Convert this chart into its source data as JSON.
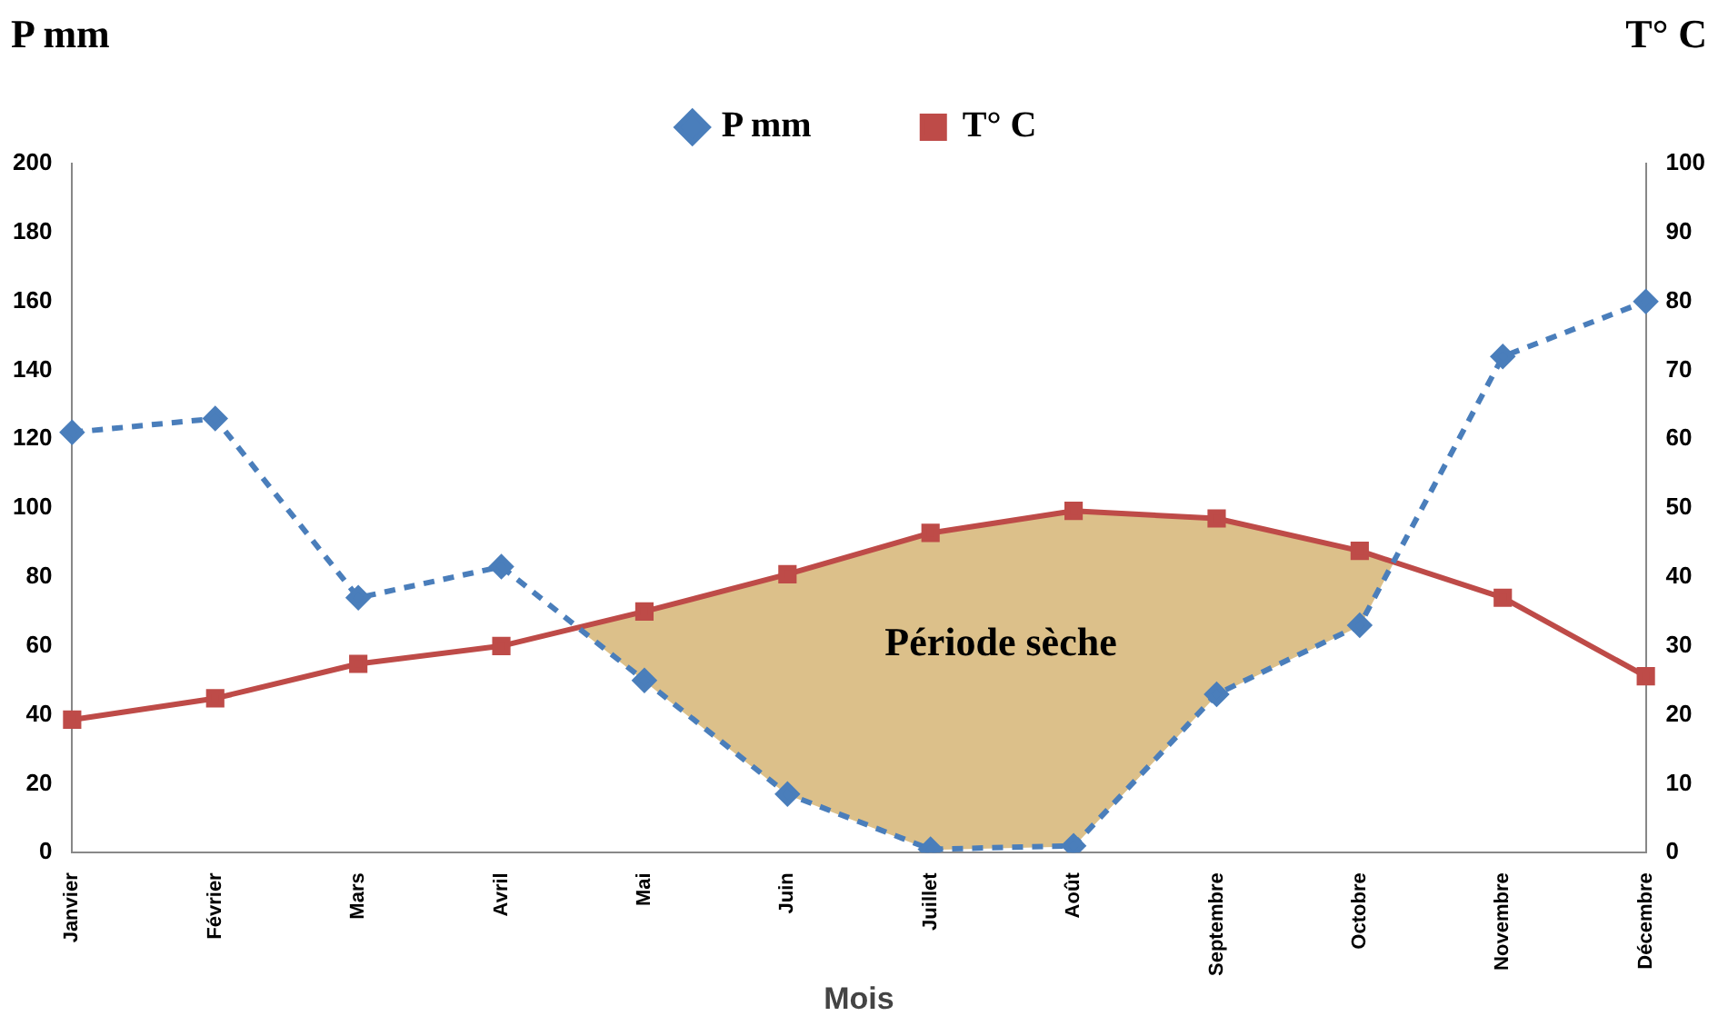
{
  "chart_data": {
    "type": "line",
    "xlabel": "Mois",
    "ylabel": "P mm",
    "y2label": "T° C",
    "categories": [
      "Janvier",
      "Février",
      "Mars",
      "Avril",
      "Mai",
      "Juin",
      "Juillet",
      "Août",
      "Septembre",
      "Octobre",
      "Novembre",
      "Décembre"
    ],
    "series": [
      {
        "name": "P mm",
        "color": "#4a7ebb",
        "values": [
          122,
          126,
          74,
          83,
          50,
          17,
          1,
          2,
          46,
          66,
          144,
          160
        ],
        "marker": "diamond",
        "line_style": "dashed"
      },
      {
        "name": "T° C",
        "color": "#be4b48",
        "values": [
          19.3,
          22.4,
          27.4,
          30,
          35,
          40.4,
          46.4,
          49.6,
          48.5,
          43.8,
          37,
          25.6
        ],
        "axis": "y2",
        "marker": "square",
        "line_style": "solid"
      }
    ],
    "ylim": [
      0,
      200
    ],
    "yticks": [
      0,
      20,
      40,
      60,
      80,
      100,
      120,
      140,
      160,
      180,
      200
    ],
    "y2lim": [
      0,
      100
    ],
    "y2ticks": [
      0,
      10,
      20,
      30,
      40,
      50,
      60,
      70,
      80,
      90,
      100
    ],
    "annotations": [
      "Période sèche"
    ],
    "legend": "top",
    "grid": false
  }
}
